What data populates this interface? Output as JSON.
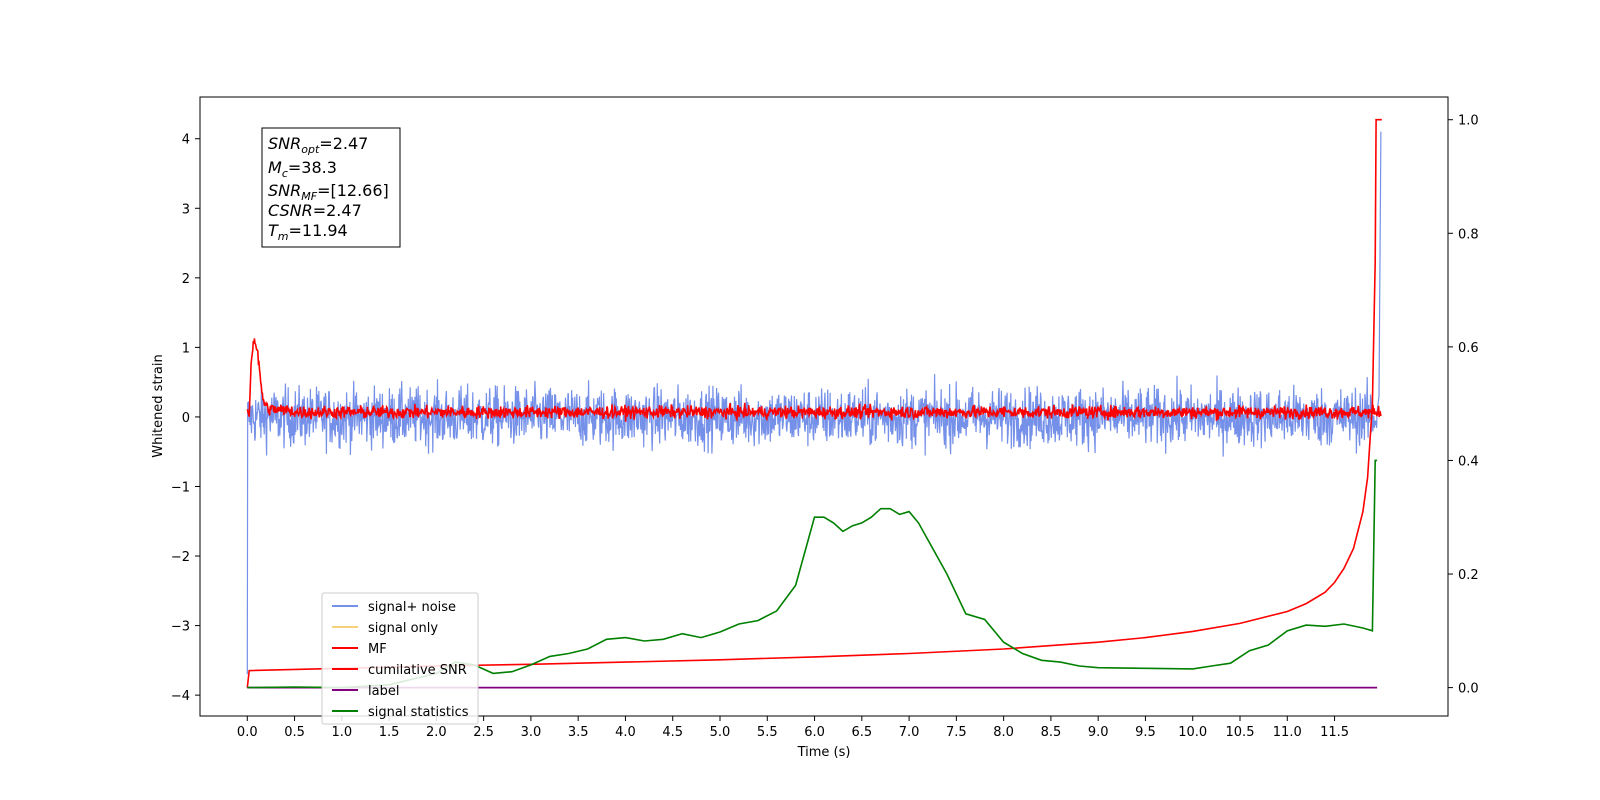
{
  "chart_data": {
    "type": "line",
    "xlabel": "Time (s)",
    "ylabel_left": "Whitened strain",
    "ylabel_right": "",
    "xlim": [
      -0.5,
      12.7
    ],
    "ylim_left": [
      -4.3,
      4.6
    ],
    "ylim_right": [
      -0.05,
      1.04
    ],
    "x_ticks": [
      "0.0",
      "0.5",
      "1.0",
      "1.5",
      "2.0",
      "2.5",
      "3.0",
      "3.5",
      "4.0",
      "4.5",
      "5.0",
      "5.5",
      "6.0",
      "6.5",
      "7.0",
      "7.5",
      "8.0",
      "8.5",
      "9.0",
      "9.5",
      "10.0",
      "10.5",
      "11.0",
      "11.5"
    ],
    "y_ticks_left": [
      "4",
      "3",
      "2",
      "1",
      "0",
      "−1",
      "−2",
      "−3",
      "−4"
    ],
    "y_ticks_right": [
      "1.0",
      "0.8",
      "0.6",
      "0.4",
      "0.2",
      "0.0"
    ],
    "grid": false,
    "legend_position": "lower-left",
    "annotation": {
      "lines": [
        {
          "main": "SNR",
          "sub": "opt",
          "value": "=2.47"
        },
        {
          "main": "M",
          "sub": "c",
          "value": "=38.3"
        },
        {
          "main": "SNR",
          "sub": "MF",
          "value": "=[12.66]"
        },
        {
          "main": "CSNR",
          "sub": "",
          "value": "=2.47"
        },
        {
          "main": "T",
          "sub": "m",
          "value": "=11.94"
        }
      ]
    },
    "series": [
      {
        "name": "signal+ noise",
        "axis": "left",
        "color": "#7590e8",
        "description_values": {
          "x_start": 0.0,
          "x_end": 11.99,
          "start_value": -3.7,
          "noise_amplitude": 0.55,
          "end_value": 4.1
        }
      },
      {
        "name": "signal only",
        "axis": "left",
        "color": "#f7d07a",
        "values": []
      },
      {
        "name": "MF",
        "axis": "right",
        "color": "#ff0000",
        "description_values": {
          "x_start": 0.0,
          "x_end": 11.99,
          "baseline": 0.485,
          "peak_x": 0.08,
          "peak_value": 0.6,
          "noise_amplitude": 0.008
        }
      },
      {
        "name": "cumilative SNR",
        "axis": "right",
        "color": "#ff0000",
        "x": [
          0.0,
          0.02,
          1.0,
          2.0,
          3.0,
          4.0,
          5.0,
          6.0,
          7.0,
          8.0,
          9.0,
          9.5,
          10.0,
          10.5,
          11.0,
          11.2,
          11.4,
          11.5,
          11.6,
          11.7,
          11.8,
          11.85,
          11.9,
          11.93,
          11.94,
          11.96,
          12.0
        ],
        "values": [
          0.0,
          0.03,
          0.034,
          0.038,
          0.041,
          0.045,
          0.049,
          0.054,
          0.06,
          0.068,
          0.08,
          0.088,
          0.099,
          0.113,
          0.134,
          0.148,
          0.168,
          0.185,
          0.21,
          0.245,
          0.31,
          0.37,
          0.5,
          0.75,
          1.0,
          1.0,
          1.0
        ]
      },
      {
        "name": "label",
        "axis": "right",
        "color": "#800080",
        "x": [
          0.0,
          11.95
        ],
        "values": [
          0.0,
          0.0
        ]
      },
      {
        "name": "signal statistics",
        "axis": "right",
        "color": "#008000",
        "x": [
          0.0,
          0.5,
          1.0,
          1.5,
          2.0,
          2.2,
          2.4,
          2.6,
          2.8,
          3.0,
          3.2,
          3.4,
          3.6,
          3.8,
          4.0,
          4.2,
          4.4,
          4.6,
          4.8,
          5.0,
          5.2,
          5.4,
          5.6,
          5.8,
          6.0,
          6.1,
          6.2,
          6.3,
          6.4,
          6.5,
          6.6,
          6.7,
          6.8,
          6.9,
          7.0,
          7.1,
          7.2,
          7.4,
          7.6,
          7.8,
          8.0,
          8.2,
          8.4,
          8.6,
          8.8,
          9.0,
          9.5,
          10.0,
          10.2,
          10.4,
          10.6,
          10.8,
          11.0,
          11.2,
          11.4,
          11.6,
          11.8,
          11.9,
          11.93,
          11.95
        ],
        "values": [
          0.0,
          0.001,
          0.0,
          0.005,
          0.025,
          0.045,
          0.04,
          0.025,
          0.028,
          0.04,
          0.055,
          0.06,
          0.068,
          0.085,
          0.088,
          0.082,
          0.085,
          0.095,
          0.088,
          0.098,
          0.112,
          0.118,
          0.135,
          0.18,
          0.3,
          0.3,
          0.29,
          0.275,
          0.285,
          0.29,
          0.3,
          0.315,
          0.315,
          0.305,
          0.31,
          0.29,
          0.26,
          0.2,
          0.13,
          0.12,
          0.08,
          0.06,
          0.048,
          0.045,
          0.038,
          0.035,
          0.034,
          0.033,
          0.038,
          0.043,
          0.065,
          0.075,
          0.1,
          0.11,
          0.108,
          0.112,
          0.105,
          0.1,
          0.4,
          0.4
        ]
      }
    ]
  }
}
